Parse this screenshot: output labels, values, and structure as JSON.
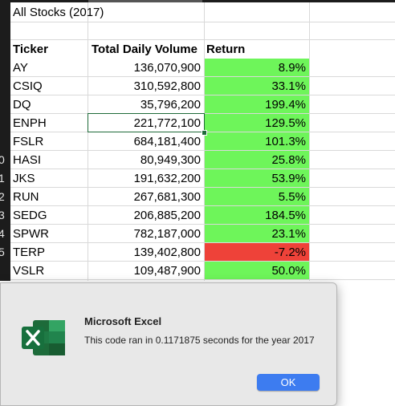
{
  "sheet": {
    "title": "All Stocks (2017)",
    "headers": {
      "ticker": "Ticker",
      "volume": "Total Daily Volume",
      "return": "Return"
    },
    "row_numbers": [
      "",
      "",
      "",
      "",
      "",
      "",
      "",
      "",
      "0",
      "1",
      "2",
      "3",
      "4",
      "5"
    ],
    "rows": [
      {
        "ticker": "AY",
        "volume": "136,070,900",
        "return": "8.9%",
        "status": "positive"
      },
      {
        "ticker": "CSIQ",
        "volume": "310,592,800",
        "return": "33.1%",
        "status": "positive"
      },
      {
        "ticker": "DQ",
        "volume": "35,796,200",
        "return": "199.4%",
        "status": "positive"
      },
      {
        "ticker": "ENPH",
        "volume": "221,772,100",
        "return": "129.5%",
        "status": "positive"
      },
      {
        "ticker": "FSLR",
        "volume": "684,181,400",
        "return": "101.3%",
        "status": "positive"
      },
      {
        "ticker": "HASI",
        "volume": "80,949,300",
        "return": "25.8%",
        "status": "positive"
      },
      {
        "ticker": "JKS",
        "volume": "191,632,200",
        "return": "53.9%",
        "status": "positive"
      },
      {
        "ticker": "RUN",
        "volume": "267,681,300",
        "return": "5.5%",
        "status": "positive"
      },
      {
        "ticker": "SEDG",
        "volume": "206,885,200",
        "return": "184.5%",
        "status": "positive"
      },
      {
        "ticker": "SPWR",
        "volume": "782,187,000",
        "return": "23.1%",
        "status": "positive"
      },
      {
        "ticker": "TERP",
        "volume": "139,402,800",
        "return": "-7.2%",
        "status": "negative"
      },
      {
        "ticker": "VSLR",
        "volume": "109,487,900",
        "return": "50.0%",
        "status": "positive"
      }
    ],
    "active_cell_value": "221,772,100",
    "colors": {
      "positive": "#6ef55a",
      "negative": "#ee4239",
      "selection": "#1f6b3a"
    }
  },
  "dialog": {
    "title": "Microsoft Excel",
    "message": "This code ran in 0.1171875 seconds for the year 2017",
    "ok_label": "OK",
    "icon": "excel-app-icon",
    "colors": {
      "button": "#3d7cf0",
      "icon_dark": "#1d6b3a",
      "icon_light": "#33a463"
    }
  }
}
